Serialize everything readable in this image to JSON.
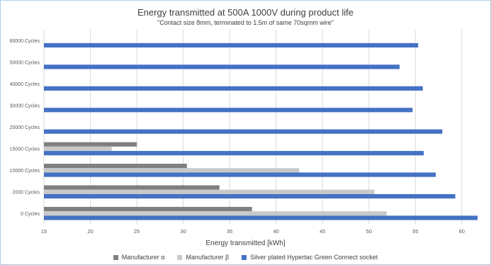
{
  "chart_data": {
    "type": "bar",
    "orientation": "horizontal",
    "title": "Energy transmitted at 500A 1000V during product life",
    "subtitle": "\"Contact size 8mm, terminated to 1.5m of same 70sqmm wire\"",
    "xlabel": "Energy transmitted [kWh]",
    "ylabel": "",
    "xlim": [
      15,
      62
    ],
    "xticks": [
      15,
      20,
      25,
      30,
      35,
      40,
      45,
      50,
      55,
      60
    ],
    "categories": [
      "60000 Cycles",
      "50000 Cycles",
      "40000 Cycles",
      "30000 Cycles",
      "20000 Cycles",
      "15000 Cycles",
      "10000 Cycles",
      "2000 Cycles",
      "0 Cycles"
    ],
    "series": [
      {
        "name": "Manufacturer α",
        "color": "#7f7f7f",
        "values": [
          null,
          null,
          null,
          null,
          null,
          25.0,
          30.4,
          33.9,
          37.4
        ]
      },
      {
        "name": "Manufacturer  β",
        "color": "#c9c9c9",
        "values": [
          null,
          null,
          null,
          null,
          null,
          22.3,
          42.5,
          50.6,
          51.9
        ]
      },
      {
        "name": "Silver plated Hypertac Green Connect socket",
        "color": "#4472c4",
        "values": [
          55.3,
          53.3,
          55.8,
          54.7,
          57.9,
          55.9,
          57.2,
          59.3,
          61.7
        ]
      }
    ],
    "grid": "vertical",
    "legend": "bottom"
  }
}
